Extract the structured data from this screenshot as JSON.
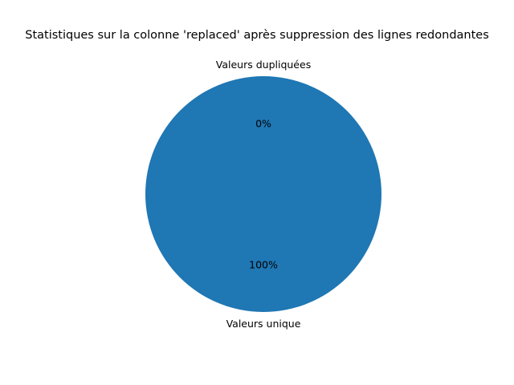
{
  "chart_data": {
    "type": "pie",
    "title": "Statistiques sur la colonne 'replaced' après suppression des lignes redondantes",
    "categories": [
      "Valeurs unique",
      "Valeurs dupliquées"
    ],
    "values": [
      100,
      0
    ],
    "value_labels": [
      "100%",
      "0%"
    ],
    "colors": [
      "#1f77b4",
      "#ff7f0e"
    ],
    "start_angle_deg": 90
  }
}
